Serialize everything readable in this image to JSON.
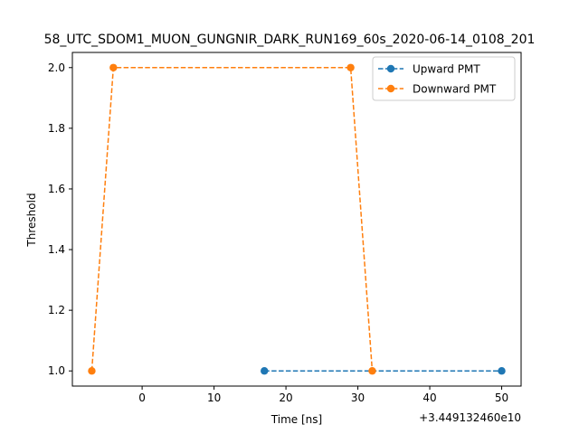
{
  "chart_data": {
    "type": "line",
    "title": "58_UTC_SDOM1_MUON_GUNGNIR_DARK_RUN169_60s_2020-06-14_0108_201",
    "xlabel": "Time [ns]",
    "ylabel": "Threshold",
    "x_offset_label": "+3.449132460e10",
    "xlim": [
      -9.7,
      52.7
    ],
    "ylim": [
      0.95,
      2.05
    ],
    "xticks": [
      0,
      10,
      20,
      30,
      40,
      50
    ],
    "yticks": [
      1.0,
      1.2,
      1.4,
      1.6,
      1.8,
      2.0
    ],
    "xtick_labels": [
      "0",
      "10",
      "20",
      "30",
      "40",
      "50"
    ],
    "ytick_labels": [
      "1.0",
      "1.2",
      "1.4",
      "1.6",
      "1.8",
      "2.0"
    ],
    "grid": false,
    "legend_position": "top-right",
    "series": [
      {
        "name": "Upward PMT",
        "color": "#1f77b4",
        "linestyle": "dashed",
        "marker": "circle",
        "x": [
          17,
          50
        ],
        "y": [
          1.0,
          1.0
        ]
      },
      {
        "name": "Downward PMT",
        "color": "#ff7f0e",
        "linestyle": "dashed",
        "marker": "circle",
        "x": [
          -7,
          -4,
          29,
          32
        ],
        "y": [
          1.0,
          2.0,
          2.0,
          1.0
        ]
      }
    ]
  }
}
